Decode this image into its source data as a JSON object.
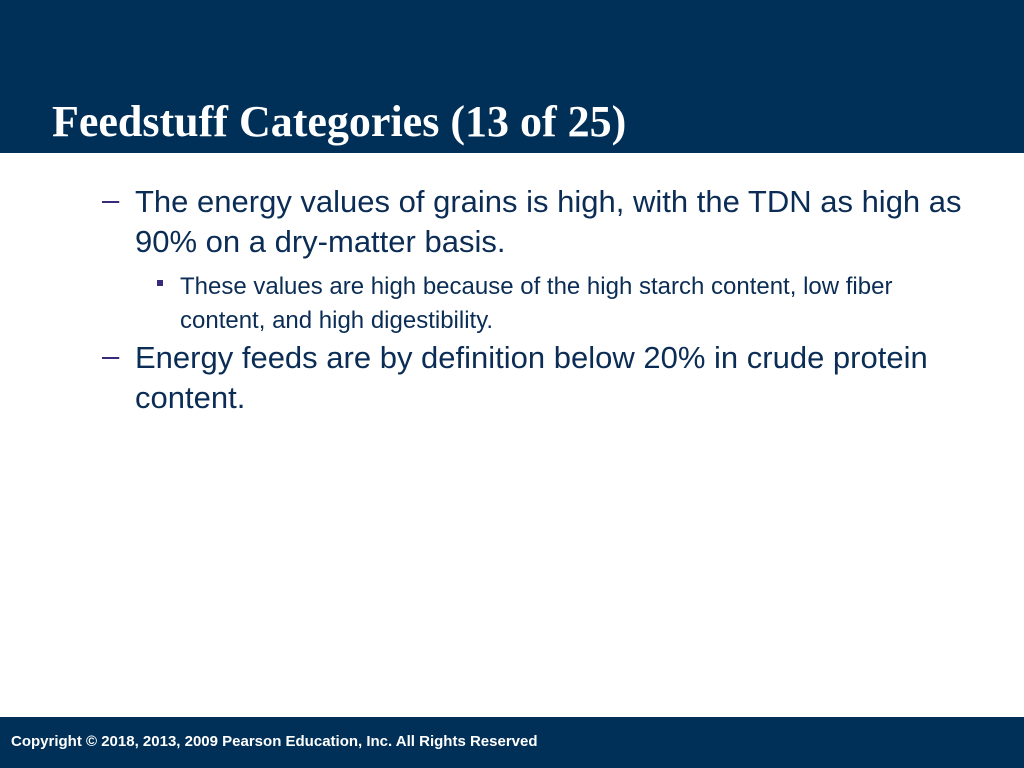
{
  "header": {
    "title": "Feedstuff Categories (13 of 25)"
  },
  "bullets": [
    {
      "text": "The energy values of grains is high, with the TDN as high as 90% on a dry-matter basis.",
      "sub": [
        "These values are high because of the high starch content, low fiber content, and high digestibility."
      ]
    },
    {
      "text": "Energy feeds are by definition below 20% in crude protein content.",
      "sub": []
    }
  ],
  "footer": {
    "text": "Copyright © 2018, 2013, 2009 Pearson Education, Inc. All Rights Reserved"
  }
}
